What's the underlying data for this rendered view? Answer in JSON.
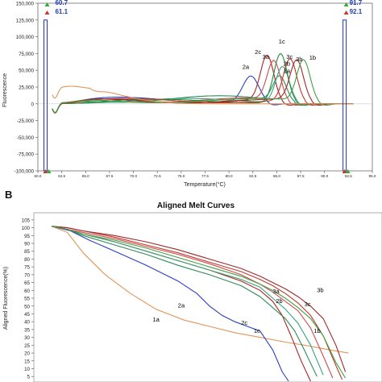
{
  "panel_labels": {
    "b": "B"
  },
  "chart_data": [
    {
      "type": "line",
      "title": "",
      "xlabel": "Temperature(°C)",
      "ylabel": "Fluorescence",
      "xlim": [
        60,
        95
      ],
      "ylim": [
        -100000,
        150000
      ],
      "x_ticks": [
        "60.0",
        "62.5",
        "65.0",
        "67.5",
        "70.0",
        "72.5",
        "75.0",
        "77.5",
        "80.0",
        "82.5",
        "85.0",
        "87.5",
        "90.0",
        "92.5",
        "95.0"
      ],
      "y_ticks": [
        "150,000",
        "125,000",
        "100,000",
        "75,000",
        "50,000",
        "25,000",
        "0",
        "-25,000",
        "-50,000",
        "-75,000",
        "-100,000"
      ],
      "grid": false,
      "markers": {
        "left_x": 60.8,
        "right_x": 92.1,
        "left_labels": [
          "60.7",
          "61.1"
        ],
        "right_labels": [
          "91.7",
          "92.1"
        ]
      },
      "series": [
        {
          "name": "2a",
          "color": "#2a3fbf",
          "peak_x": 82.3,
          "peak_y": 40000,
          "width": 1.2,
          "tail": 10000
        },
        {
          "name": "2c",
          "color": "#b22222",
          "peak_x": 84.0,
          "peak_y": 70000,
          "width": 1.0,
          "tail": 8000
        },
        {
          "name": "3a",
          "color": "#d14a4a",
          "peak_x": 84.7,
          "peak_y": 62000,
          "width": 1.0,
          "tail": 9000
        },
        {
          "name": "1a",
          "color": "#2e8b57",
          "peak_x": 85.3,
          "peak_y": 40000,
          "width": 1.0,
          "tail": 12000
        },
        {
          "name": "2b",
          "color": "#3aa47a",
          "peak_x": 85.6,
          "peak_y": 55000,
          "width": 1.0,
          "tail": 8000
        },
        {
          "name": "1c",
          "color": "#228b3a",
          "peak_x": 85.4,
          "peak_y": 74000,
          "width": 1.0,
          "tail": 7000
        },
        {
          "name": "3c",
          "color": "#c0392b",
          "peak_x": 86.4,
          "peak_y": 65000,
          "width": 1.0,
          "tail": 8000
        },
        {
          "name": "3b",
          "color": "#9e2a2a",
          "peak_x": 87.1,
          "peak_y": 63000,
          "width": 1.0,
          "tail": 8000
        },
        {
          "name": "1b",
          "color": "#43a047",
          "peak_x": 87.8,
          "peak_y": 64000,
          "width": 1.0,
          "tail": 8000
        },
        {
          "name": "",
          "color": "#e0955a",
          "peak_x": 64.0,
          "peak_y": 24000,
          "width": 6.0,
          "tail": 18000
        }
      ]
    },
    {
      "type": "line",
      "title": "Aligned Melt Curves",
      "xlabel": "",
      "ylabel": "Aligned Fluorescence(%)",
      "ylim": [
        0,
        105
      ],
      "y_ticks": [
        "105",
        "100",
        "95",
        "90",
        "85",
        "80",
        "75",
        "70",
        "65",
        "60",
        "55",
        "50",
        "45",
        "40",
        "35",
        "30",
        "25",
        "20",
        "15",
        "10",
        "5"
      ],
      "grid": false,
      "series": [
        {
          "name": "1a",
          "color": "#e0955a",
          "points": [
            [
              0.0,
              101
            ],
            [
              0.05,
              97
            ],
            [
              0.1,
              84
            ],
            [
              0.17,
              70
            ],
            [
              0.25,
              58
            ],
            [
              0.33,
              48
            ],
            [
              0.42,
              41
            ],
            [
              0.5,
              37
            ],
            [
              0.58,
              33
            ],
            [
              0.66,
              30
            ],
            [
              0.74,
              27
            ],
            [
              0.8,
              25
            ],
            [
              0.88,
              22
            ],
            [
              0.94,
              20
            ]
          ]
        },
        {
          "name": "2a",
          "color": "#2a3fbf",
          "points": [
            [
              0.0,
              101
            ],
            [
              0.06,
              98
            ],
            [
              0.12,
              92
            ],
            [
              0.2,
              85
            ],
            [
              0.3,
              76
            ],
            [
              0.4,
              66
            ],
            [
              0.46,
              58
            ],
            [
              0.5,
              50
            ],
            [
              0.54,
              44
            ],
            [
              0.58,
              40
            ],
            [
              0.62,
              37
            ],
            [
              0.66,
              34
            ],
            [
              0.7,
              22
            ],
            [
              0.73,
              8
            ],
            [
              0.75,
              2
            ]
          ]
        },
        {
          "name": "2c",
          "color": "#b22222",
          "points": [
            [
              0.0,
              101
            ],
            [
              0.05,
              99
            ],
            [
              0.1,
              96
            ],
            [
              0.2,
              91
            ],
            [
              0.3,
              85
            ],
            [
              0.4,
              79
            ],
            [
              0.5,
              73
            ],
            [
              0.6,
              66
            ],
            [
              0.66,
              60
            ],
            [
              0.7,
              53
            ],
            [
              0.73,
              44
            ],
            [
              0.76,
              30
            ],
            [
              0.79,
              15
            ],
            [
              0.82,
              2
            ]
          ]
        },
        {
          "name": "1c",
          "color": "#2e8b57",
          "points": [
            [
              0.0,
              101
            ],
            [
              0.05,
              99
            ],
            [
              0.1,
              95
            ],
            [
              0.2,
              89
            ],
            [
              0.3,
              83
            ],
            [
              0.4,
              76
            ],
            [
              0.5,
              70
            ],
            [
              0.6,
              63
            ],
            [
              0.66,
              56
            ],
            [
              0.7,
              49
            ],
            [
              0.74,
              42
            ],
            [
              0.77,
              34
            ],
            [
              0.8,
              22
            ],
            [
              0.84,
              5
            ]
          ]
        },
        {
          "name": "2b",
          "color": "#3aa47a",
          "points": [
            [
              0.0,
              101
            ],
            [
              0.05,
              99
            ],
            [
              0.1,
              96
            ],
            [
              0.2,
              91
            ],
            [
              0.3,
              85
            ],
            [
              0.4,
              79
            ],
            [
              0.5,
              73
            ],
            [
              0.6,
              67
            ],
            [
              0.66,
              62
            ],
            [
              0.7,
              55
            ],
            [
              0.74,
              48
            ],
            [
              0.78,
              39
            ],
            [
              0.82,
              25
            ],
            [
              0.86,
              6
            ]
          ]
        },
        {
          "name": "3a",
          "color": "#d14a4a",
          "points": [
            [
              0.0,
              101
            ],
            [
              0.05,
              99
            ],
            [
              0.1,
              97
            ],
            [
              0.2,
              93
            ],
            [
              0.3,
              88
            ],
            [
              0.4,
              83
            ],
            [
              0.5,
              77
            ],
            [
              0.6,
              70
            ],
            [
              0.66,
              64
            ],
            [
              0.7,
              59
            ],
            [
              0.74,
              53
            ],
            [
              0.78,
              47
            ],
            [
              0.82,
              36
            ],
            [
              0.86,
              18
            ],
            [
              0.89,
              4
            ]
          ]
        },
        {
          "name": "3c",
          "color": "#c0392b",
          "points": [
            [
              0.0,
              101
            ],
            [
              0.05,
              100
            ],
            [
              0.1,
              98
            ],
            [
              0.2,
              94
            ],
            [
              0.3,
              89
            ],
            [
              0.4,
              84
            ],
            [
              0.5,
              78
            ],
            [
              0.6,
              72
            ],
            [
              0.66,
              67
            ],
            [
              0.7,
              63
            ],
            [
              0.74,
              58
            ],
            [
              0.78,
              52
            ],
            [
              0.82,
              44
            ],
            [
              0.86,
              31
            ],
            [
              0.9,
              12
            ],
            [
              0.92,
              3
            ]
          ]
        },
        {
          "name": "3b",
          "color": "#9e2a2a",
          "points": [
            [
              0.0,
              101
            ],
            [
              0.05,
              100
            ],
            [
              0.1,
              98
            ],
            [
              0.2,
              95
            ],
            [
              0.3,
              91
            ],
            [
              0.4,
              86
            ],
            [
              0.5,
              80
            ],
            [
              0.6,
              74
            ],
            [
              0.66,
              69
            ],
            [
              0.7,
              65
            ],
            [
              0.74,
              61
            ],
            [
              0.78,
              56
            ],
            [
              0.82,
              50
            ],
            [
              0.86,
              42
            ],
            [
              0.9,
              25
            ],
            [
              0.93,
              8
            ]
          ]
        },
        {
          "name": "1b",
          "color": "#43a047",
          "points": [
            [
              0.0,
              101
            ],
            [
              0.05,
              99
            ],
            [
              0.1,
              96
            ],
            [
              0.2,
              92
            ],
            [
              0.3,
              87
            ],
            [
              0.4,
              81
            ],
            [
              0.5,
              75
            ],
            [
              0.6,
              69
            ],
            [
              0.66,
              64
            ],
            [
              0.7,
              60
            ],
            [
              0.74,
              55
            ],
            [
              0.78,
              49
            ],
            [
              0.82,
              42
            ],
            [
              0.86,
              31
            ],
            [
              0.9,
              14
            ],
            [
              0.93,
              4
            ]
          ]
        }
      ]
    }
  ]
}
